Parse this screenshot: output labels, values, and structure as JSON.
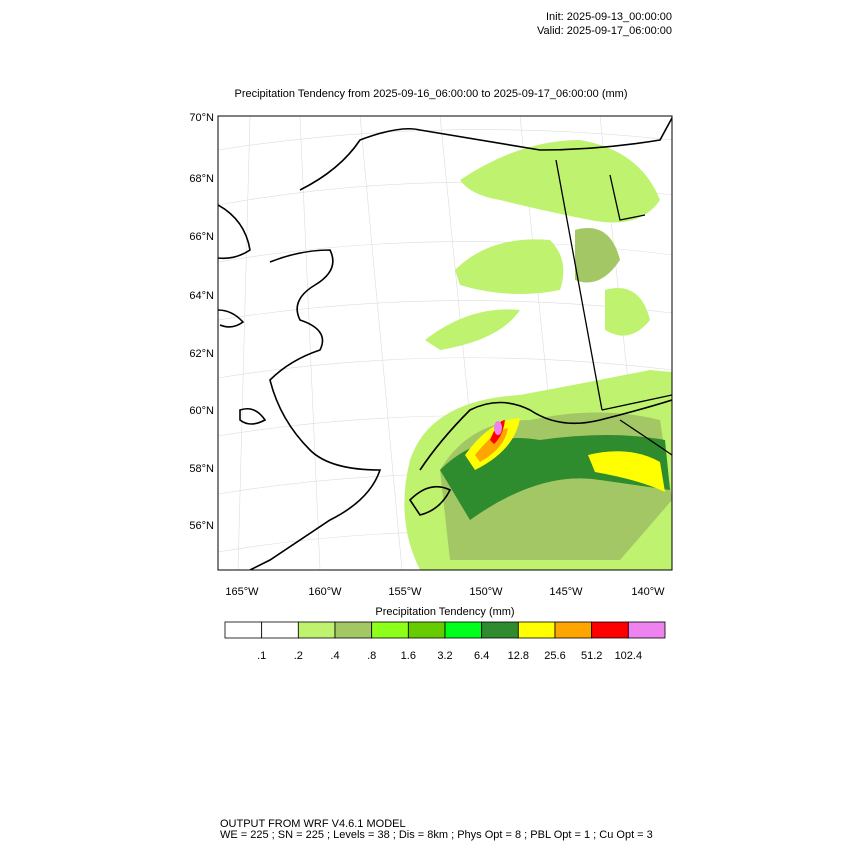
{
  "header": {
    "init": "Init: 2025-09-13_00:00:00",
    "valid": "Valid: 2025-09-17_06:00:00"
  },
  "map": {
    "title": "Precipitation Tendency from 2025-09-16_06:00:00 to 2025-09-17_06:00:00   (mm)",
    "lat_labels": [
      "70°N",
      "68°N",
      "66°N",
      "64°N",
      "62°N",
      "60°N",
      "58°N",
      "56°N"
    ],
    "lon_labels": [
      "165°W",
      "160°W",
      "155°W",
      "150°W",
      "145°W",
      "140°W"
    ]
  },
  "colorbar": {
    "title": "Precipitation Tendency  (mm)",
    "labels": [
      ".1",
      ".2",
      ".4",
      ".8",
      "1.6",
      "3.2",
      "6.4",
      "12.8",
      "25.6",
      "51.2",
      "102.4"
    ],
    "colors": [
      "#ffffff",
      "#ffffff",
      "#bff26f",
      "#a3c765",
      "#8cff1a",
      "#66cc00",
      "#00ff1a",
      "#2e8b2e",
      "#ffff00",
      "#ffa500",
      "#ff0000",
      "#ee82ee"
    ]
  },
  "footer": {
    "line1": "OUTPUT FROM WRF V4.6.1 MODEL",
    "line2": "WE = 225 ; SN = 225 ; Levels = 38 ; Dis = 8km ; Phys Opt = 8 ; PBL Opt = 1 ; Cu Opt = 3"
  }
}
